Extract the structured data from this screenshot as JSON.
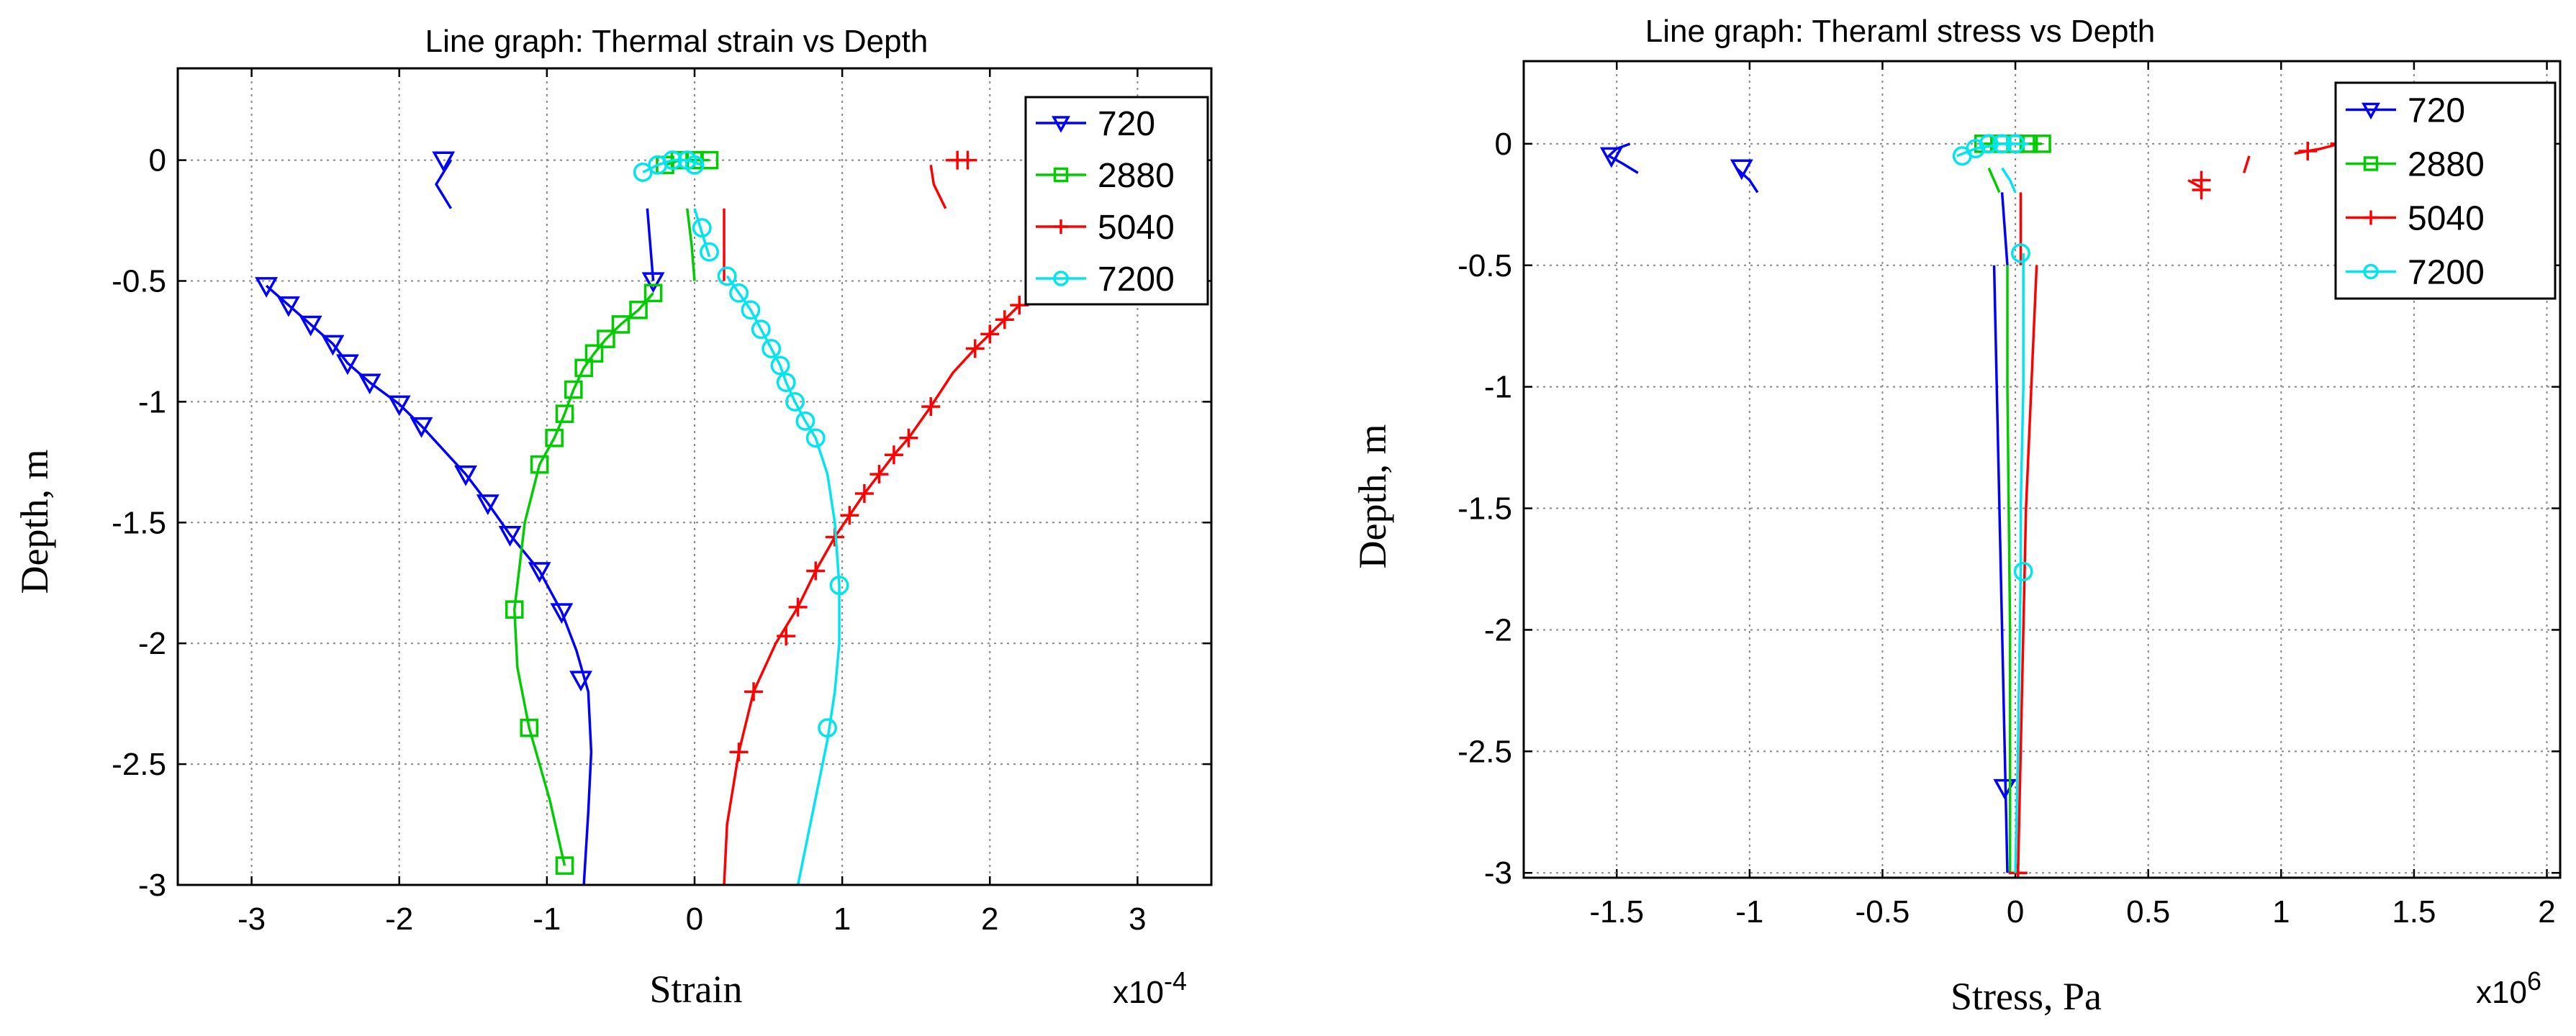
{
  "chart_data": [
    {
      "type": "line",
      "title": "Line graph: Thermal strain vs Depth",
      "xlabel": "Strain",
      "ylabel": "Depth, m",
      "exponent_base": "x10",
      "exponent_power": "-4",
      "xlim": [
        -3.5,
        3.5
      ],
      "ylim": [
        -3,
        0.38
      ],
      "xticks": [
        -3,
        -2,
        -1,
        0,
        1,
        2,
        3
      ],
      "xtick_labels": [
        "-3",
        "-2",
        "-1",
        "0",
        "1",
        "2",
        "3"
      ],
      "yticks": [
        0,
        -0.5,
        -1,
        -1.5,
        -2,
        -2.5,
        -3
      ],
      "ytick_labels": [
        "0",
        "-0.5",
        "-1",
        "-1.5",
        "-2",
        "-2.5",
        "-3"
      ],
      "grid": true,
      "legend_position": "top-right",
      "series": [
        {
          "name": "720",
          "color": "#0000ff",
          "marker": "triangle-down",
          "segments": [
            {
              "x": [
                -1.65,
                -1.7,
                -1.75,
                -1.7,
                -1.65
              ],
              "y": [
                0,
                -0.05,
                -0.1,
                -0.15,
                -0.2
              ]
            },
            {
              "x": [
                -0.32,
                -0.3,
                -0.28
              ],
              "y": [
                -0.2,
                -0.35,
                -0.5
              ]
            },
            {
              "x": [
                -2.9,
                -2.75,
                -2.6,
                -2.45,
                -2.35,
                -2.2,
                -2.0,
                -1.85,
                -1.55,
                -1.4,
                -1.25,
                -1.05,
                -0.9,
                -0.8,
                -0.72,
                -0.7,
                -0.72,
                -0.75
              ],
              "y": [
                -0.52,
                -0.6,
                -0.68,
                -0.76,
                -0.84,
                -0.92,
                -1.01,
                -1.1,
                -1.3,
                -1.42,
                -1.55,
                -1.7,
                -1.87,
                -2.03,
                -2.2,
                -2.45,
                -2.7,
                -3.0
              ]
            }
          ],
          "markers": {
            "x": [
              -1.7,
              -0.28,
              -2.9,
              -2.75,
              -2.6,
              -2.45,
              -2.35,
              -2.2,
              -2.0,
              -1.85,
              -1.55,
              -1.4,
              -1.25,
              -1.05,
              -0.9,
              -0.77
            ],
            "y": [
              0,
              -0.5,
              -0.52,
              -0.6,
              -0.68,
              -0.76,
              -0.84,
              -0.92,
              -1.01,
              -1.1,
              -1.3,
              -1.42,
              -1.55,
              -1.7,
              -1.87,
              -2.15
            ]
          }
        },
        {
          "name": "2880",
          "color": "#00cc00",
          "marker": "square",
          "segments": [
            {
              "x": [
                -0.2,
                -0.1,
                0.0,
                0.1
              ],
              "y": [
                -0.02,
                0.0,
                0.0,
                0.0
              ]
            },
            {
              "x": [
                -0.05,
                -0.02,
                0.0
              ],
              "y": [
                -0.2,
                -0.35,
                -0.5
              ]
            },
            {
              "x": [
                -0.28,
                -0.38,
                -0.5,
                -0.6,
                -0.68,
                -0.75,
                -0.82,
                -0.88,
                -0.95,
                -1.05,
                -1.15,
                -1.22,
                -1.2,
                -1.12,
                -0.98,
                -0.88
              ],
              "y": [
                -0.55,
                -0.62,
                -0.68,
                -0.74,
                -0.8,
                -0.86,
                -0.95,
                -1.05,
                -1.15,
                -1.26,
                -1.5,
                -1.86,
                -2.1,
                -2.35,
                -2.65,
                -2.92
              ]
            }
          ],
          "markers": {
            "x": [
              -0.2,
              -0.1,
              0.0,
              0.1,
              -0.28,
              -0.38,
              -0.5,
              -0.6,
              -0.68,
              -0.75,
              -0.82,
              -0.88,
              -0.95,
              -1.05,
              -1.22,
              -1.12,
              -0.88
            ],
            "y": [
              -0.02,
              0.0,
              0.0,
              0.0,
              -0.55,
              -0.62,
              -0.68,
              -0.74,
              -0.8,
              -0.86,
              -0.95,
              -1.05,
              -1.15,
              -1.26,
              -1.86,
              -2.35,
              -2.92
            ]
          }
        },
        {
          "name": "5040",
          "color": "#ff0000",
          "marker": "plus",
          "segments": [
            {
              "x": [
                1.7,
                1.78,
                1.85
              ],
              "y": [
                0,
                0,
                0
              ]
            },
            {
              "x": [
                1.6,
                1.62,
                1.7
              ],
              "y": [
                -0.02,
                -0.1,
                -0.2
              ]
            },
            {
              "x": [
                0.2,
                0.2,
                0.2
              ],
              "y": [
                -0.2,
                -0.35,
                -0.5
              ]
            },
            {
              "x": [
                2.2,
                2.1,
                2.0,
                1.9,
                1.75,
                1.6,
                1.45,
                1.35,
                1.25,
                1.15,
                1.05,
                0.95,
                0.82,
                0.7,
                0.55,
                0.4,
                0.3,
                0.22,
                0.2
              ],
              "y": [
                -0.6,
                -0.66,
                -0.72,
                -0.78,
                -0.88,
                -1.02,
                -1.15,
                -1.22,
                -1.3,
                -1.38,
                -1.47,
                -1.56,
                -1.7,
                -1.85,
                -2.0,
                -2.2,
                -2.45,
                -2.75,
                -3.0
              ]
            }
          ],
          "markers": {
            "x": [
              1.78,
              1.85,
              2.2,
              2.1,
              2.0,
              1.9,
              1.6,
              1.45,
              1.35,
              1.25,
              1.15,
              1.05,
              0.95,
              0.82,
              0.7,
              0.62,
              0.4,
              0.3
            ],
            "y": [
              0,
              0,
              -0.6,
              -0.66,
              -0.72,
              -0.78,
              -1.02,
              -1.15,
              -1.22,
              -1.3,
              -1.38,
              -1.47,
              -1.56,
              -1.7,
              -1.85,
              -1.97,
              -2.2,
              -2.45
            ]
          }
        },
        {
          "name": "7200",
          "color": "#00e5ee",
          "marker": "circle",
          "segments": [
            {
              "x": [
                -0.35,
                -0.25,
                -0.15,
                -0.05,
                0.05
              ],
              "y": [
                -0.05,
                -0.02,
                0.0,
                0.0,
                -0.02
              ]
            },
            {
              "x": [
                0.0,
                0.05,
                0.1
              ],
              "y": [
                -0.2,
                -0.3,
                -0.4
              ]
            },
            {
              "x": [
                0.22,
                0.3,
                0.38,
                0.45,
                0.52,
                0.58,
                0.62,
                0.68,
                0.75,
                0.82,
                0.9,
                0.95,
                0.98,
                0.98,
                0.95,
                0.9,
                0.8,
                0.7
              ],
              "y": [
                -0.48,
                -0.55,
                -0.62,
                -0.7,
                -0.78,
                -0.85,
                -0.92,
                -1.0,
                -1.08,
                -1.15,
                -1.3,
                -1.5,
                -1.76,
                -2.0,
                -2.2,
                -2.4,
                -2.7,
                -3.0
              ]
            }
          ],
          "markers": {
            "x": [
              -0.35,
              -0.25,
              -0.15,
              -0.05,
              0.0,
              0.05,
              0.1,
              0.22,
              0.3,
              0.38,
              0.45,
              0.52,
              0.58,
              0.62,
              0.68,
              0.75,
              0.82,
              0.98,
              0.9
            ],
            "y": [
              -0.05,
              -0.02,
              0.0,
              0.0,
              -0.02,
              -0.28,
              -0.38,
              -0.48,
              -0.55,
              -0.62,
              -0.7,
              -0.78,
              -0.85,
              -0.92,
              -1.0,
              -1.08,
              -1.15,
              -1.76,
              -2.35
            ]
          }
        }
      ]
    },
    {
      "type": "line",
      "title": "Line graph: Theraml stress vs Depth",
      "xlabel": "Stress, Pa",
      "ylabel": "Depth, m",
      "exponent_base": "x10",
      "exponent_power": "6",
      "xlim": [
        -1.85,
        2.05
      ],
      "ylim": [
        -3.02,
        0.34
      ],
      "xticks": [
        -1.5,
        -1,
        -0.5,
        0,
        0.5,
        1,
        1.5,
        2
      ],
      "xtick_labels": [
        "-1.5",
        "-1",
        "-0.5",
        "0",
        "0.5",
        "1",
        "1.5",
        "2"
      ],
      "yticks": [
        0,
        -0.5,
        -1,
        -1.5,
        -2,
        -2.5,
        -3
      ],
      "ytick_labels": [
        "0",
        "-0.5",
        "-1",
        "-1.5",
        "-2",
        "-2.5",
        "-3"
      ],
      "grid": true,
      "legend_position": "top-right",
      "series": [
        {
          "name": "720",
          "color": "#0000ff",
          "marker": "triangle-down",
          "segments": [
            {
              "x": [
                -1.45,
                -1.5,
                -1.53,
                -1.48,
                -1.42
              ],
              "y": [
                0.0,
                -0.02,
                -0.05,
                -0.08,
                -0.12
              ]
            },
            {
              "x": [
                -1.05,
                -1.0,
                -0.97
              ],
              "y": [
                -0.1,
                -0.15,
                -0.2
              ]
            },
            {
              "x": [
                -0.05,
                -0.04,
                -0.03
              ],
              "y": [
                -0.2,
                -0.35,
                -0.5
              ]
            },
            {
              "x": [
                -0.08,
                -0.07,
                -0.06,
                -0.05,
                -0.04,
                -0.03
              ],
              "y": [
                -0.5,
                -1.0,
                -1.5,
                -2.0,
                -2.5,
                -3.0
              ]
            }
          ],
          "markers": {
            "x": [
              -1.52,
              -1.03,
              -0.04
            ],
            "y": [
              -0.05,
              -0.1,
              -2.65
            ]
          }
        },
        {
          "name": "2880",
          "color": "#00cc00",
          "marker": "square",
          "segments": [
            {
              "x": [
                -0.12,
                0.0,
                0.05,
                0.1
              ],
              "y": [
                0.0,
                0.0,
                0.0,
                0.0
              ]
            },
            {
              "x": [
                -0.1,
                -0.08,
                -0.06
              ],
              "y": [
                -0.1,
                -0.15,
                -0.2
              ]
            },
            {
              "x": [
                -0.03,
                -0.03,
                -0.02,
                -0.02,
                -0.02
              ],
              "y": [
                -0.5,
                -1.0,
                -2.0,
                -2.5,
                -3.0
              ]
            }
          ],
          "markers": {
            "x": [
              -0.12,
              -0.05,
              0.0,
              0.05,
              0.1
            ],
            "y": [
              0.0,
              0.0,
              0.0,
              0.0,
              0.0
            ]
          }
        },
        {
          "name": "5040",
          "color": "#ff0000",
          "marker": "plus",
          "segments": [
            {
              "x": [
                1.05,
                1.15,
                1.22
              ],
              "y": [
                -0.04,
                -0.02,
                0.0
              ]
            },
            {
              "x": [
                0.88,
                0.86
              ],
              "y": [
                -0.05,
                -0.12
              ]
            },
            {
              "x": [
                0.65,
                0.7
              ],
              "y": [
                -0.15,
                -0.18
              ]
            },
            {
              "x": [
                0.02,
                0.02
              ],
              "y": [
                -0.2,
                -0.5
              ]
            },
            {
              "x": [
                0.08,
                0.06,
                0.04,
                0.03,
                0.02,
                0.01
              ],
              "y": [
                -0.5,
                -1.0,
                -1.5,
                -2.0,
                -2.5,
                -3.0
              ]
            }
          ],
          "markers": {
            "x": [
              1.1,
              1.22,
              0.7,
              0.7,
              0.01
            ],
            "y": [
              -0.03,
              0.0,
              -0.15,
              -0.19,
              -3.0
            ]
          }
        },
        {
          "name": "7200",
          "color": "#00e5ee",
          "marker": "circle",
          "segments": [
            {
              "x": [
                -0.22,
                -0.15,
                -0.05,
                0.05
              ],
              "y": [
                -0.05,
                -0.02,
                0.0,
                0.0
              ]
            },
            {
              "x": [
                -0.05,
                -0.02,
                0.0
              ],
              "y": [
                -0.1,
                -0.15,
                -0.2
              ]
            },
            {
              "x": [
                0.03,
                0.03,
                0.02,
                0.02,
                0.01,
                0.0
              ],
              "y": [
                -0.45,
                -1.0,
                -1.5,
                -1.76,
                -2.5,
                -3.0
              ]
            }
          ],
          "markers": {
            "x": [
              -0.2,
              -0.15,
              -0.1,
              -0.05,
              0.0,
              0.02,
              0.03
            ],
            "y": [
              -0.05,
              -0.02,
              0.0,
              0.0,
              0.0,
              -0.45,
              -1.76
            ]
          }
        }
      ]
    }
  ]
}
